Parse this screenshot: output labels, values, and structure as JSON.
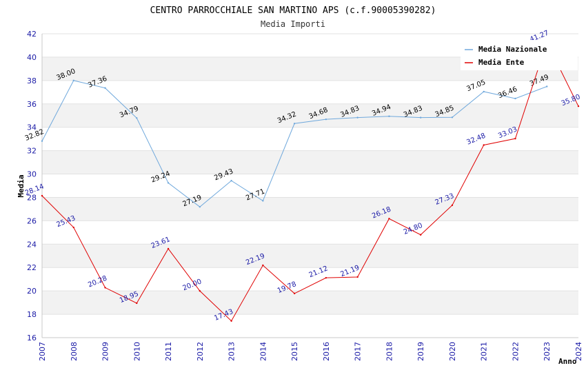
{
  "chart_data": {
    "type": "line",
    "title": "CENTRO PARROCCHIALE SAN MARTINO APS (c.f.90005390282)",
    "subtitle": "Media Importi",
    "xlabel": "Anno",
    "ylabel": "Media",
    "x": [
      2007,
      2008,
      2009,
      2010,
      2011,
      2012,
      2013,
      2014,
      2015,
      2016,
      2017,
      2018,
      2019,
      2020,
      2021,
      2022,
      2023,
      2024
    ],
    "xlim": [
      2007,
      2024
    ],
    "ylim": [
      16,
      42
    ],
    "yticks": [
      16,
      18,
      20,
      22,
      24,
      26,
      28,
      30,
      32,
      34,
      36,
      38,
      40,
      42
    ],
    "grid": "horizontal alternating bands",
    "legend_position": "top-right",
    "series": [
      {
        "name": "Media Nazionale",
        "color": "#6fa8dc",
        "label_color": "#000000",
        "x": [
          2007,
          2008,
          2009,
          2010,
          2011,
          2012,
          2013,
          2014,
          2015,
          2016,
          2017,
          2018,
          2019,
          2020,
          2021,
          2022,
          2023
        ],
        "values": [
          32.82,
          38.0,
          37.36,
          34.79,
          29.24,
          27.19,
          29.43,
          27.71,
          34.32,
          34.68,
          34.83,
          34.94,
          34.83,
          34.85,
          37.05,
          36.46,
          37.49
        ],
        "labels": [
          "32.82",
          "38.00",
          "37.36",
          "34.79",
          "29.24",
          "27.19",
          "29.43",
          "27.71",
          "34.32",
          "34.68",
          "34.83",
          "34.94",
          "34.83",
          "34.85",
          "37.05",
          "36.46",
          "37.49"
        ]
      },
      {
        "name": "Media Ente",
        "color": "#e00000",
        "label_color": "#1a1aa6",
        "x": [
          2007,
          2008,
          2009,
          2010,
          2011,
          2012,
          2013,
          2014,
          2015,
          2016,
          2017,
          2018,
          2019,
          2020,
          2021,
          2022,
          2023,
          2024
        ],
        "values": [
          28.14,
          25.43,
          20.28,
          18.95,
          23.61,
          20.0,
          17.43,
          22.19,
          19.78,
          21.12,
          21.19,
          26.18,
          24.8,
          27.33,
          32.48,
          33.03,
          41.27,
          35.8
        ],
        "labels": [
          "28.14",
          "25.43",
          "20.28",
          "18.95",
          "23.61",
          "20.00",
          "17.43",
          "22.19",
          "19.78",
          "21.12",
          "21.19",
          "26.18",
          "24.80",
          "27.33",
          "32.48",
          "33.03",
          "41.27",
          "35.80"
        ]
      }
    ]
  }
}
